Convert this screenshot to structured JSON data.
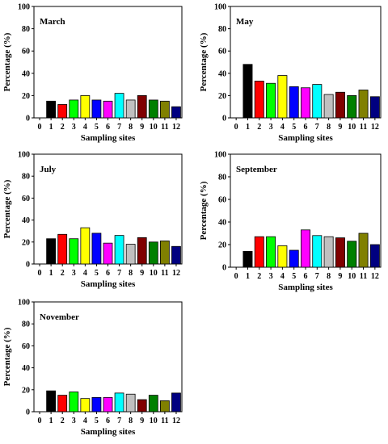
{
  "series_colors": [
    "#000000",
    "#ff0000",
    "#00ff00",
    "#ffff00",
    "#0000ff",
    "#ff00ff",
    "#00ffff",
    "#c0c0c0",
    "#800000",
    "#008000",
    "#808000",
    "#000080"
  ],
  "chart_data": [
    {
      "type": "bar",
      "title": "March",
      "xlabel": "Sampling sites",
      "ylabel": "Percentage (%)",
      "ylim": [
        0,
        100
      ],
      "yticks": [
        "0",
        "20",
        "40",
        "60",
        "80",
        "100"
      ],
      "xticks": [
        "0",
        "1",
        "2",
        "3",
        "4",
        "5",
        "6",
        "7",
        "8",
        "9",
        "10",
        "11",
        "12"
      ],
      "categories": [
        "1",
        "2",
        "3",
        "4",
        "5",
        "6",
        "7",
        "8",
        "9",
        "10",
        "11",
        "12"
      ],
      "values": [
        15,
        12,
        16,
        20,
        16,
        15,
        22,
        16,
        20,
        16,
        15,
        10
      ]
    },
    {
      "type": "bar",
      "title": "May",
      "xlabel": "Sampling sites",
      "ylabel": "Percentage (%)",
      "ylim": [
        0,
        100
      ],
      "yticks": [
        "0",
        "20",
        "40",
        "60",
        "80",
        "100"
      ],
      "xticks": [
        "0",
        "1",
        "2",
        "3",
        "4",
        "5",
        "6",
        "7",
        "8",
        "9",
        "10",
        "11",
        "12"
      ],
      "categories": [
        "1",
        "2",
        "3",
        "4",
        "5",
        "6",
        "7",
        "8",
        "9",
        "10",
        "11",
        "12"
      ],
      "values": [
        48,
        33,
        31,
        38,
        28,
        27,
        30,
        21,
        23,
        20,
        25,
        19
      ]
    },
    {
      "type": "bar",
      "title": "July",
      "xlabel": "Sampling sites",
      "ylabel": "Percentage (%)",
      "ylim": [
        0,
        100
      ],
      "yticks": [
        "0",
        "20",
        "40",
        "60",
        "80",
        "100"
      ],
      "xticks": [
        "0",
        "1",
        "2",
        "3",
        "4",
        "5",
        "6",
        "7",
        "8",
        "9",
        "10",
        "11",
        "12"
      ],
      "categories": [
        "1",
        "2",
        "3",
        "4",
        "5",
        "6",
        "7",
        "8",
        "9",
        "10",
        "11",
        "12"
      ],
      "values": [
        23,
        27,
        23,
        33,
        28,
        19,
        26,
        18,
        24,
        20,
        21,
        16
      ]
    },
    {
      "type": "bar",
      "title": "September",
      "xlabel": "Sampling sites",
      "ylabel": "Percentage (%)",
      "ylim": [
        0,
        100
      ],
      "yticks": [
        "0",
        "20",
        "40",
        "60",
        "80",
        "100"
      ],
      "xticks": [
        "0",
        "1",
        "2",
        "3",
        "4",
        "5",
        "6",
        "7",
        "8",
        "9",
        "10",
        "11",
        "12"
      ],
      "categories": [
        "1",
        "2",
        "3",
        "4",
        "5",
        "6",
        "7",
        "8",
        "9",
        "10",
        "11",
        "12"
      ],
      "values": [
        14,
        27,
        27,
        19,
        15,
        33,
        28,
        27,
        26,
        23,
        30,
        20
      ]
    },
    {
      "type": "bar",
      "title": "November",
      "xlabel": "Sampling sites",
      "ylabel": "Percentage (%)",
      "ylim": [
        0,
        100
      ],
      "yticks": [
        "0",
        "20",
        "40",
        "60",
        "80",
        "100"
      ],
      "xticks": [
        "0",
        "1",
        "2",
        "3",
        "4",
        "5",
        "6",
        "7",
        "8",
        "9",
        "10",
        "11",
        "12"
      ],
      "categories": [
        "1",
        "2",
        "3",
        "4",
        "5",
        "6",
        "7",
        "8",
        "9",
        "10",
        "11",
        "12"
      ],
      "values": [
        19,
        15,
        18,
        12,
        13,
        13,
        17,
        16,
        11,
        15,
        10,
        17
      ]
    }
  ]
}
